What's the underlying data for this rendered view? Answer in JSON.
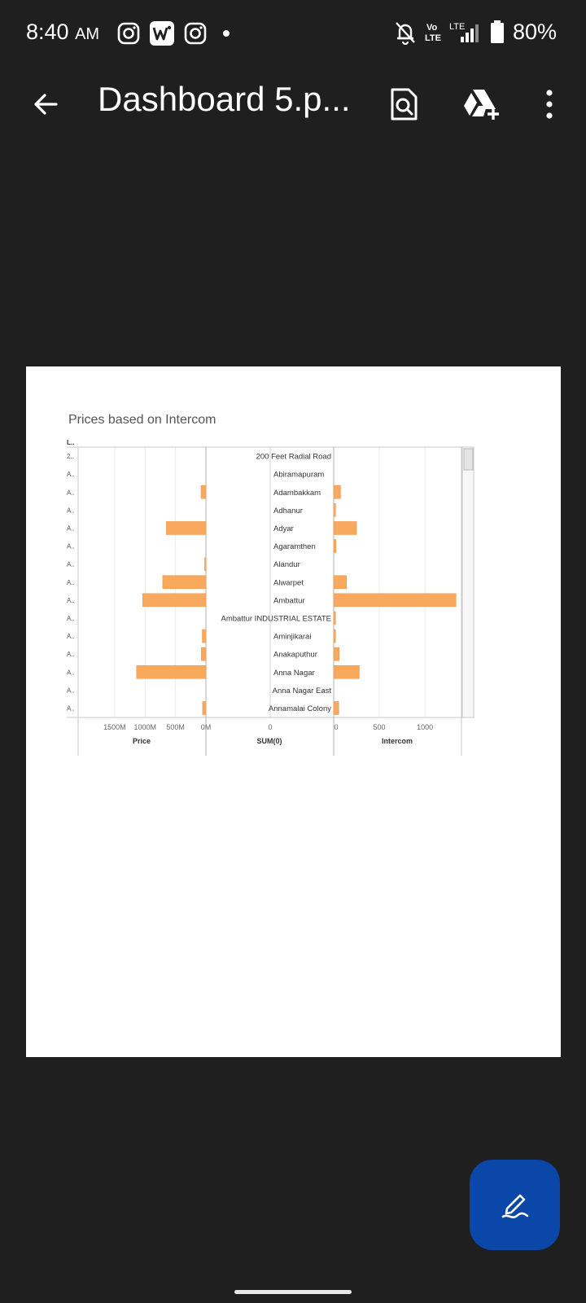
{
  "status": {
    "time": "8:40",
    "ampm": "AM",
    "battery": "80%",
    "left_icons": [
      "instagram-icon",
      "wps-office-icon",
      "instagram-icon",
      "dot-icon"
    ],
    "right_icons": [
      "bell-off-icon",
      "volte-icon",
      "lte-signal-icon",
      "battery-icon"
    ],
    "volte_label": "Vo LTE",
    "lte_label": "LTE"
  },
  "app_bar": {
    "title": "Dashboard 5.p...",
    "icons": [
      "back-arrow-icon",
      "search-in-document-icon",
      "drive-add-icon",
      "more-vert-icon"
    ]
  },
  "chart_data": {
    "type": "bar",
    "title": "Prices based on Intercom",
    "row_header": "L..",
    "row_truncated": [
      "2..",
      "A..",
      "A..",
      "A..",
      "A..",
      "A..",
      "A..",
      "A..",
      "A..",
      "A..",
      "A..",
      "A..",
      "A..",
      "A..",
      "A.."
    ],
    "categories": [
      "200 Feet Radial Road",
      "Abiramapuram",
      "Adambakkam",
      "Adhanur",
      "Adyar",
      "Agaramthen",
      "Alandur",
      "Alwarpet",
      "Ambattur",
      "Ambattur INDUSTRIAL ESTATE",
      "Aminjikarai",
      "Anakaputhur",
      "Anna Nagar",
      "Anna Nagar East",
      "Annamalai Colony"
    ],
    "series": [
      {
        "name": "Price",
        "values": [
          0,
          0,
          80,
          0,
          650,
          0,
          20,
          710,
          1040,
          0,
          60,
          75,
          1140,
          0,
          55
        ],
        "unit": "M"
      },
      {
        "name": "Intercom",
        "values": [
          0,
          0,
          75,
          20,
          250,
          25,
          0,
          140,
          1340,
          20,
          20,
          60,
          280,
          0,
          55
        ]
      }
    ],
    "price_ticks": [
      "1500M",
      "1000M",
      "500M",
      "0M"
    ],
    "price_tick_values": [
      1500,
      1000,
      500,
      0
    ],
    "price_xlim": [
      0,
      2100
    ],
    "sum_tick": "0",
    "intercom_ticks": [
      "0",
      "500",
      "1000"
    ],
    "intercom_tick_values": [
      0,
      500,
      1000
    ],
    "intercom_xlim": [
      0,
      1400
    ],
    "axis_labels": {
      "price": "Price",
      "sum": "SUM(0)",
      "intercom": "Intercom"
    },
    "bar_color": "#f9a95e",
    "grid": true
  },
  "fab": {
    "icon": "edit-pen-icon"
  }
}
